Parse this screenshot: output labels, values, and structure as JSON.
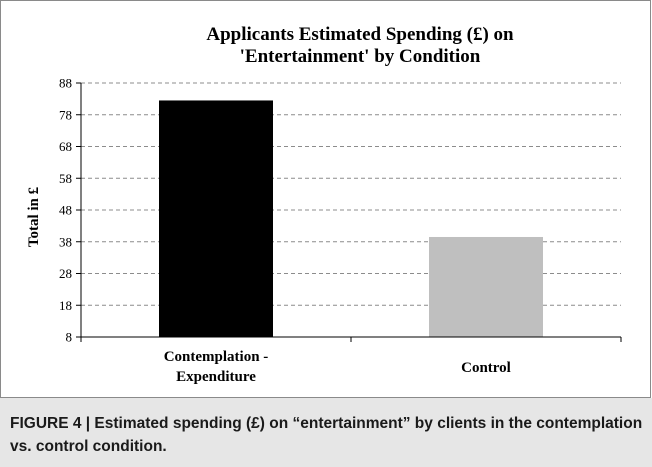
{
  "chart_data": {
    "type": "bar",
    "title": "Applicants Estimated Spending (£) on\n'Entertainment' by Condition",
    "xlabel": "",
    "ylabel": "Total in £",
    "categories": [
      "Contemplation -\nExpenditure",
      "Control"
    ],
    "values": [
      82.5,
      39.5
    ],
    "colors": [
      "#000000",
      "#bfbfbf"
    ],
    "ylim": [
      8,
      88
    ],
    "yticks": [
      8,
      18,
      28,
      38,
      48,
      58,
      68,
      78,
      88
    ],
    "grid": true,
    "legend": "none"
  },
  "caption": "FIGURE 4 | Estimated spending (£) on “entertainment” by clients in the contemplation vs. control condition."
}
